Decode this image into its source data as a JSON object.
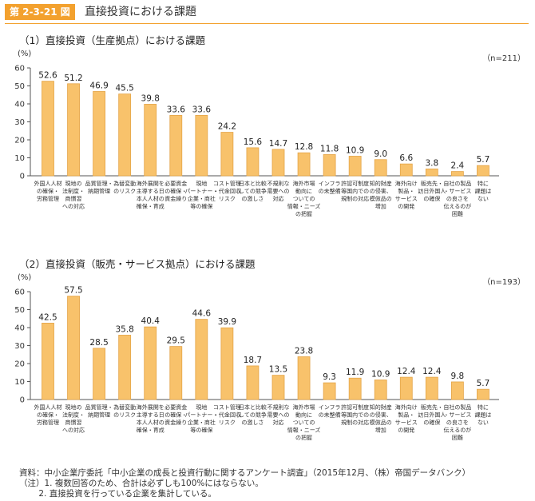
{
  "figure": {
    "number": "第 2-3-21 図",
    "title": "直接投資における課題",
    "accent_color": "#f3a12e",
    "bar_color": "#f8c26b",
    "bar_stroke": "#e4a447"
  },
  "chart_data": [
    {
      "type": "bar",
      "title": "（1）直接投資（生産拠点）における課題",
      "ylabel": "(%)",
      "note": "（n=211）",
      "ylim": [
        0,
        60
      ],
      "yticks": [
        0,
        10,
        20,
        30,
        40,
        50,
        60
      ],
      "categories": [
        [
          "外国人人材",
          "の確保・",
          "労務管理"
        ],
        [
          "現地の",
          "法制度・",
          "商慣習",
          "への対応"
        ],
        [
          "品質管理・",
          "納期管理"
        ],
        [
          "為替変動",
          "のリスク"
        ],
        [
          "海外展開を",
          "主導する日",
          "本人人材の",
          "確保・育成"
        ],
        [
          "必要資金",
          "の確保・",
          "資金繰り"
        ],
        [
          "現地",
          "パートナー・",
          "企業・商社",
          "等の確保"
        ],
        [
          "コスト管理",
          "・代金回収",
          "リスク"
        ],
        [
          "日本と比較",
          "しての競争",
          "の激しさ"
        ],
        [
          "不規則な",
          "需要への",
          "対応"
        ],
        [
          "海外市場",
          "動向に",
          "ついての",
          "情報・ニーズ",
          "の把握"
        ],
        [
          "インフラ",
          "の未整備"
        ],
        [
          "許認可制度",
          "等国内での",
          "規制の対応"
        ],
        [
          "知的財産",
          "の侵害、",
          "模倣品の",
          "増加"
        ],
        [
          "海外向け",
          "製品・",
          "サービス",
          "の開発"
        ],
        [
          "販売先・",
          "訪日外国人",
          "の確保"
        ],
        [
          "自社の製品",
          "・サービス",
          "の良さを",
          "伝えるのが",
          "困難"
        ],
        [
          "特に",
          "課題は",
          "ない"
        ]
      ],
      "values": [
        52.6,
        51.2,
        46.9,
        45.5,
        39.8,
        33.6,
        33.6,
        24.2,
        15.6,
        14.7,
        12.8,
        11.8,
        10.9,
        9.0,
        6.6,
        3.8,
        2.4,
        5.7
      ],
      "value_labels": [
        "52.6",
        "51.2",
        "46.9",
        "45.5",
        "39.8",
        "33.6",
        "33.6",
        "24.2",
        "15.6",
        "14.7",
        "12.8",
        "11.8",
        "10.9",
        "9.0",
        "6.6",
        "3.8",
        "2.4",
        "5.7"
      ]
    },
    {
      "type": "bar",
      "title": "（2）直接投資（販売・サービス拠点）における課題",
      "ylabel": "(%)",
      "note": "（n=193）",
      "ylim": [
        0,
        60
      ],
      "yticks": [
        0,
        10,
        20,
        30,
        40,
        50,
        60
      ],
      "categories": [
        [
          "外国人人材",
          "の確保・",
          "労務管理"
        ],
        [
          "現地の",
          "法制度・",
          "商慣習",
          "への対応"
        ],
        [
          "品質管理・",
          "納期管理"
        ],
        [
          "為替変動",
          "のリスク"
        ],
        [
          "海外展開を",
          "主導する日",
          "本人人材の",
          "確保・育成"
        ],
        [
          "必要資金",
          "の確保・",
          "資金繰り"
        ],
        [
          "現地",
          "パートナー・",
          "企業・商社",
          "等の確保"
        ],
        [
          "コスト管理",
          "・代金回収",
          "リスク"
        ],
        [
          "日本と比較",
          "しての競争",
          "の激しさ"
        ],
        [
          "不規則な",
          "需要への",
          "対応"
        ],
        [
          "海外市場",
          "動向に",
          "ついての",
          "情報・ニーズ",
          "の把握"
        ],
        [
          "インフラ",
          "の未整備"
        ],
        [
          "許認可制度",
          "等国内での",
          "規制の対応"
        ],
        [
          "知的財産",
          "の侵害、",
          "模倣品の",
          "増加"
        ],
        [
          "海外向け",
          "製品・",
          "サービス",
          "の開発"
        ],
        [
          "販売先・",
          "訪日外国人",
          "の確保"
        ],
        [
          "自社の製品",
          "・サービス",
          "の良さを",
          "伝えるのが",
          "困難"
        ],
        [
          "特に",
          "課題は",
          "ない"
        ]
      ],
      "values": [
        42.5,
        57.5,
        28.5,
        35.8,
        40.4,
        29.5,
        44.6,
        39.9,
        18.7,
        13.5,
        23.8,
        9.3,
        11.9,
        10.9,
        12.4,
        12.4,
        9.8,
        5.7
      ],
      "value_labels": [
        "42.5",
        "57.5",
        "28.5",
        "35.8",
        "40.4",
        "29.5",
        "44.6",
        "39.9",
        "18.7",
        "13.5",
        "23.8",
        "9.3",
        "11.9",
        "10.9",
        "12.4",
        "12.4",
        "9.8",
        "5.7"
      ]
    }
  ],
  "footnotes": [
    "資料：中小企業庁委託「中小企業の成長と投資行動に関するアンケート調査」（2015年12月、（株）帝国データバンク）",
    "（注）1. 複数回答のため、合計は必ずしも100%にはならない。",
    "　　 2. 直接投資を行っている企業を集計している。"
  ]
}
